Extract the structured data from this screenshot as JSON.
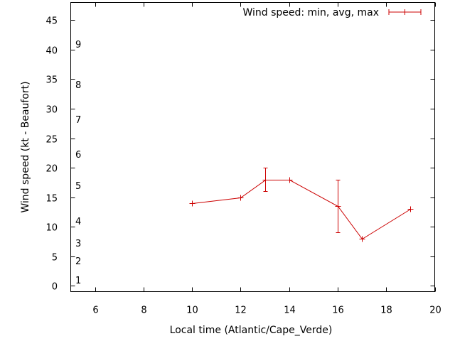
{
  "chart_data": {
    "type": "line",
    "title": "",
    "xlabel": "Local time (Atlantic/Cape_Verde)",
    "ylabel": "Wind speed (kt - Beaufort)",
    "xlim": [
      5,
      20
    ],
    "ylim": [
      -1,
      48
    ],
    "x_ticks": [
      6,
      8,
      10,
      12,
      14,
      16,
      18,
      20
    ],
    "y_ticks": [
      0,
      5,
      10,
      15,
      20,
      25,
      30,
      35,
      40,
      45
    ],
    "beaufort_labels": [
      {
        "label": "1",
        "value": 1
      },
      {
        "label": "2",
        "value": 4.2
      },
      {
        "label": "3",
        "value": 7.2
      },
      {
        "label": "4",
        "value": 11
      },
      {
        "label": "5",
        "value": 17
      },
      {
        "label": "6",
        "value": 22.3
      },
      {
        "label": "7",
        "value": 28.2
      },
      {
        "label": "8",
        "value": 34.1
      },
      {
        "label": "9",
        "value": 41
      }
    ],
    "legend": {
      "label": "Wind speed: min, avg, max",
      "position": "top-right"
    },
    "series": [
      {
        "name": "Wind speed: min, avg, max",
        "color": "#cc0000",
        "x": [
          10,
          12,
          13,
          14,
          16,
          17,
          19
        ],
        "avg": [
          14,
          15,
          18,
          18,
          13.5,
          8,
          13
        ],
        "min": [
          14,
          15,
          16,
          18,
          9,
          8,
          13
        ],
        "max": [
          14,
          15,
          20,
          18,
          18,
          8,
          13
        ]
      }
    ]
  }
}
